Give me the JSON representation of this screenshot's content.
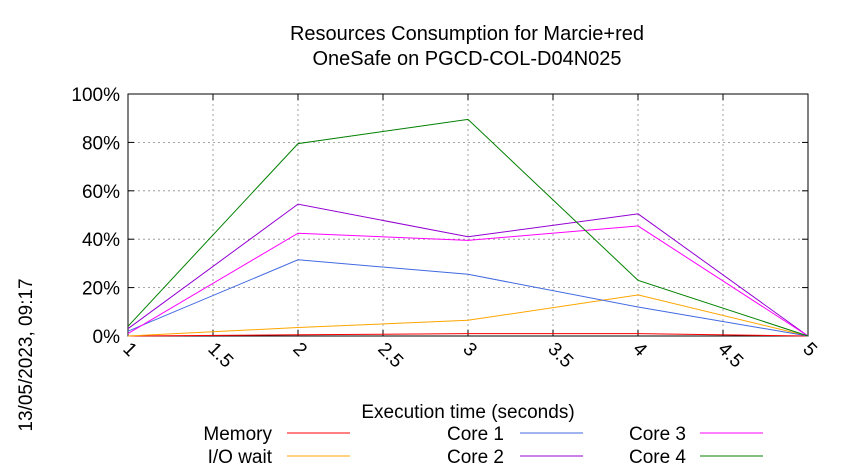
{
  "chart_data": {
    "type": "line",
    "title": [
      "Resources Consumption for Marcie+red",
      "OneSafe on PGCD-COL-D04N025"
    ],
    "xlabel": "Execution time (seconds)",
    "ylabel": "",
    "date_label": "13/05/2023, 09:17",
    "xlim": [
      1,
      5
    ],
    "ylim": [
      0,
      100
    ],
    "x_ticks": [
      "1",
      "1.5",
      "2",
      "2.5",
      "3",
      "3.5",
      "4",
      "4.5",
      "5"
    ],
    "y_ticks": [
      "0%",
      "20%",
      "40%",
      "60%",
      "80%",
      "100%"
    ],
    "grid": true,
    "legend_position": "bottom",
    "x": [
      1,
      2,
      3,
      4,
      5
    ],
    "series": [
      {
        "name": "Memory",
        "color": "#ff0000",
        "values": [
          0,
          0.5,
          1,
          1,
          0
        ]
      },
      {
        "name": "I/O wait",
        "color": "#ffa500",
        "values": [
          0,
          3.5,
          6.5,
          17,
          0
        ]
      },
      {
        "name": "Core 1",
        "color": "#4169e1",
        "values": [
          2,
          31.5,
          25.5,
          12,
          0
        ]
      },
      {
        "name": "Core 2",
        "color": "#9400d3",
        "values": [
          3,
          54.5,
          41,
          50.5,
          0
        ]
      },
      {
        "name": "Core 3",
        "color": "#ff00ff",
        "values": [
          1,
          42.5,
          39.5,
          45.5,
          0
        ]
      },
      {
        "name": "Core 4",
        "color": "#008000",
        "values": [
          4,
          79.5,
          89.5,
          23,
          0
        ]
      }
    ]
  }
}
